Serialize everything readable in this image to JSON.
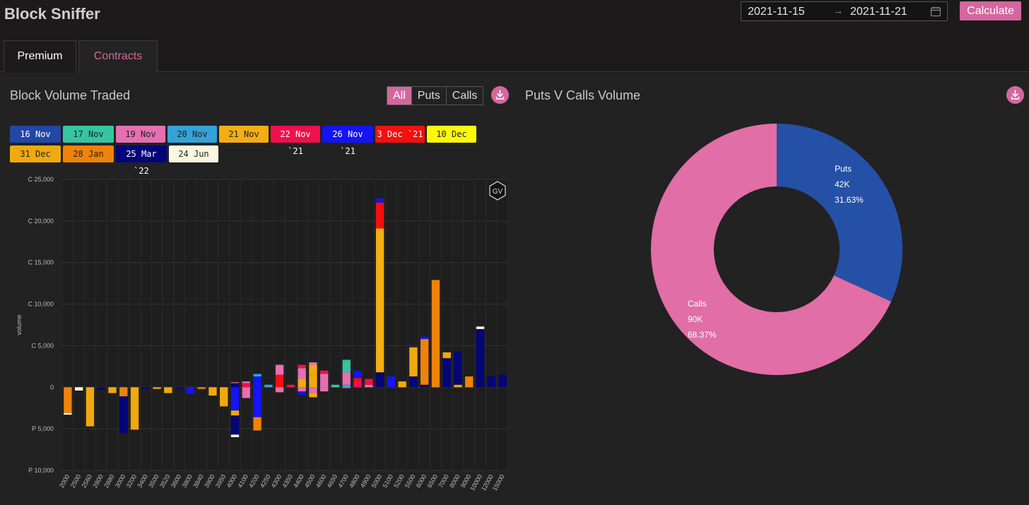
{
  "app": {
    "title": "Block Sniffer"
  },
  "date_range": {
    "start": "2021-11-15",
    "end": "2021-11-21",
    "separator": "→"
  },
  "calculate_label": "Calculate",
  "tabs": [
    {
      "label": "Premium"
    },
    {
      "label": "Contracts"
    }
  ],
  "left_panel": {
    "title": "Block Volume Traded",
    "filters": [
      "All",
      "Puts",
      "Calls"
    ],
    "active_filter": "All"
  },
  "right_panel": {
    "title": "Puts V Calls Volume"
  },
  "legend": [
    {
      "label": "16 Nov `21",
      "color": "#2148a6",
      "text": "#fff"
    },
    {
      "label": "17 Nov `21",
      "color": "#36c5a0",
      "text": "#222"
    },
    {
      "label": "19 Nov `21",
      "color": "#e56fb0",
      "text": "#222"
    },
    {
      "label": "20 Nov `21",
      "color": "#34a2d6",
      "text": "#222"
    },
    {
      "label": "21 Nov `21",
      "color": "#f2ae12",
      "text": "#222"
    },
    {
      "label": "22 Nov `21",
      "color": "#f0104c",
      "text": "#fff"
    },
    {
      "label": "26 Nov `21",
      "color": "#1414f5",
      "text": "#fff"
    },
    {
      "label": "3 Dec `21",
      "color": "#f50f0f",
      "text": "#fff"
    },
    {
      "label": "10 Dec `21",
      "color": "#fcf80c",
      "text": "#222"
    },
    {
      "label": "31 Dec `21",
      "color": "#f0a90e",
      "text": "#222"
    },
    {
      "label": "28 Jan `22",
      "color": "#f0820a",
      "text": "#222"
    },
    {
      "label": "25 Mar `22",
      "color": "#05057a",
      "text": "#fff"
    },
    {
      "label": "24 Jun `22",
      "color": "#fbf6e0",
      "text": "#222"
    }
  ],
  "badge": "GV",
  "chart_data": [
    {
      "type": "bar",
      "ylabel": "volume",
      "ylim": [
        -10000,
        25000
      ],
      "yticks": [
        {
          "v": 25000,
          "label": "C 25,000"
        },
        {
          "v": 20000,
          "label": "C 20,000"
        },
        {
          "v": 15000,
          "label": "C 15,000"
        },
        {
          "v": 10000,
          "label": "C 10,000"
        },
        {
          "v": 5000,
          "label": "C 5,000"
        },
        {
          "v": 0,
          "label": "0"
        },
        {
          "v": -5000,
          "label": "P 5,000"
        },
        {
          "v": -10000,
          "label": "P 10,000"
        }
      ],
      "categories": [
        "2000",
        "2500",
        "2560",
        "2800",
        "2880",
        "3000",
        "3200",
        "3400",
        "3500",
        "3520",
        "3600",
        "3800",
        "3840",
        "3900",
        "3950",
        "4000",
        "4100",
        "4200",
        "4250",
        "4300",
        "4350",
        "4400",
        "4500",
        "4600",
        "4650",
        "4700",
        "4800",
        "4900",
        "5000",
        "5100",
        "5200",
        "5500",
        "6000",
        "6500",
        "7000",
        "8000",
        "9000",
        "10000",
        "12000",
        "15000"
      ],
      "series_colors": [
        "#2148a6",
        "#36c5a0",
        "#e56fb0",
        "#34a2d6",
        "#f2ae12",
        "#f0104c",
        "#1414f5",
        "#f50f0f",
        "#fcf80c",
        "#f0a90e",
        "#f0820a",
        "#05057a",
        "#fbf6e0"
      ],
      "bars": [
        [
          [
            10,
            -3100
          ],
          [
            12,
            -200
          ]
        ],
        [
          [
            12,
            -400
          ]
        ],
        [
          [
            9,
            -4700
          ]
        ],
        [
          [
            11,
            -300
          ]
        ],
        [
          [
            9,
            -700
          ]
        ],
        [
          [
            10,
            -1100
          ],
          [
            11,
            -4400
          ]
        ],
        [
          [
            9,
            -5100
          ]
        ],
        [
          [
            11,
            -200
          ]
        ],
        [
          [
            9,
            -200
          ]
        ],
        [
          [
            9,
            -700
          ]
        ],
        [
          [
            11,
            -200
          ]
        ],
        [
          [
            6,
            -800
          ]
        ],
        [
          [
            10,
            -200
          ]
        ],
        [
          [
            9,
            -1000
          ]
        ],
        [
          [
            9,
            -2300
          ]
        ],
        [
          [
            11,
            500
          ],
          [
            2,
            100
          ],
          [
            6,
            -2800
          ],
          [
            9,
            -600
          ],
          [
            11,
            -2300
          ],
          [
            12,
            -300
          ]
        ],
        [
          [
            5,
            500
          ],
          [
            2,
            200
          ],
          [
            2,
            -1300
          ]
        ],
        [
          [
            6,
            1300
          ],
          [
            3,
            300
          ],
          [
            6,
            -3600
          ],
          [
            10,
            -1600
          ]
        ],
        [
          [
            3,
            300
          ]
        ],
        [
          [
            7,
            1500
          ],
          [
            2,
            1200
          ],
          [
            2,
            -600
          ]
        ],
        [
          [
            5,
            300
          ]
        ],
        [
          [
            9,
            1000
          ],
          [
            2,
            1300
          ],
          [
            5,
            400
          ],
          [
            2,
            -500
          ],
          [
            6,
            -400
          ]
        ],
        [
          [
            9,
            1500
          ],
          [
            9,
            1200
          ],
          [
            2,
            300
          ],
          [
            2,
            -700
          ],
          [
            9,
            -500
          ]
        ],
        [
          [
            2,
            1600
          ],
          [
            5,
            400
          ],
          [
            2,
            -500
          ]
        ],
        [
          [
            1,
            300
          ]
        ],
        [
          [
            3,
            300
          ],
          [
            2,
            1500
          ],
          [
            1,
            1300
          ],
          [
            1,
            200
          ],
          [
            2,
            -100
          ]
        ],
        [
          [
            5,
            700
          ],
          [
            7,
            400
          ],
          [
            6,
            900
          ]
        ],
        [
          [
            2,
            300
          ],
          [
            5,
            700
          ]
        ],
        [
          [
            11,
            1800
          ],
          [
            4,
            17300
          ],
          [
            7,
            3100
          ],
          [
            6,
            500
          ],
          [
            12,
            0
          ]
        ],
        [
          [
            6,
            1300
          ]
        ],
        [
          [
            9,
            700
          ]
        ],
        [
          [
            11,
            1300
          ],
          [
            9,
            3500
          ]
        ],
        [
          [
            11,
            300
          ],
          [
            10,
            5500
          ],
          [
            6,
            300
          ]
        ],
        [
          [
            10,
            12900
          ]
        ],
        [
          [
            11,
            3500
          ],
          [
            9,
            700
          ]
        ],
        [
          [
            9,
            300
          ],
          [
            11,
            4000
          ]
        ],
        [
          [
            10,
            1300
          ]
        ],
        [
          [
            11,
            7000
          ],
          [
            12,
            300
          ]
        ],
        [
          [
            11,
            1300
          ]
        ],
        [
          [
            11,
            1500
          ]
        ]
      ]
    },
    {
      "type": "pie",
      "donut": true,
      "slices": [
        {
          "name": "Puts",
          "value": 42,
          "display_value": "42K",
          "percent": "31.63%",
          "color": "#2450a6"
        },
        {
          "name": "Calls",
          "value": 90,
          "display_value": "90K",
          "percent": "68.37%",
          "color": "#e16ea6"
        }
      ]
    }
  ]
}
